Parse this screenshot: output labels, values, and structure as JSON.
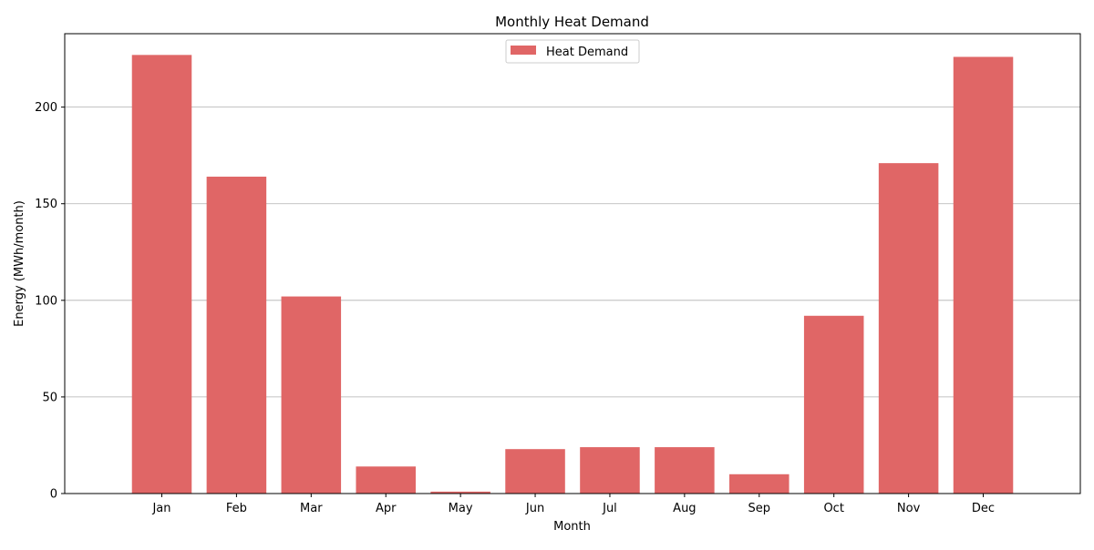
{
  "chart_data": {
    "type": "bar",
    "title": "Monthly Heat Demand",
    "xlabel": "Month",
    "ylabel": "Energy (MWh/month)",
    "categories": [
      "Jan",
      "Feb",
      "Mar",
      "Apr",
      "May",
      "Jun",
      "Jul",
      "Aug",
      "Sep",
      "Oct",
      "Nov",
      "Dec"
    ],
    "series": [
      {
        "name": "Heat Demand",
        "color": "#e06666",
        "values": [
          227,
          164,
          102,
          14,
          1,
          23,
          24,
          24,
          10,
          92,
          171,
          226
        ]
      }
    ],
    "ylim": [
      0,
      238
    ],
    "yticks": [
      0,
      50,
      100,
      150,
      200
    ],
    "grid": "y-major",
    "legend_position": "top-center"
  }
}
